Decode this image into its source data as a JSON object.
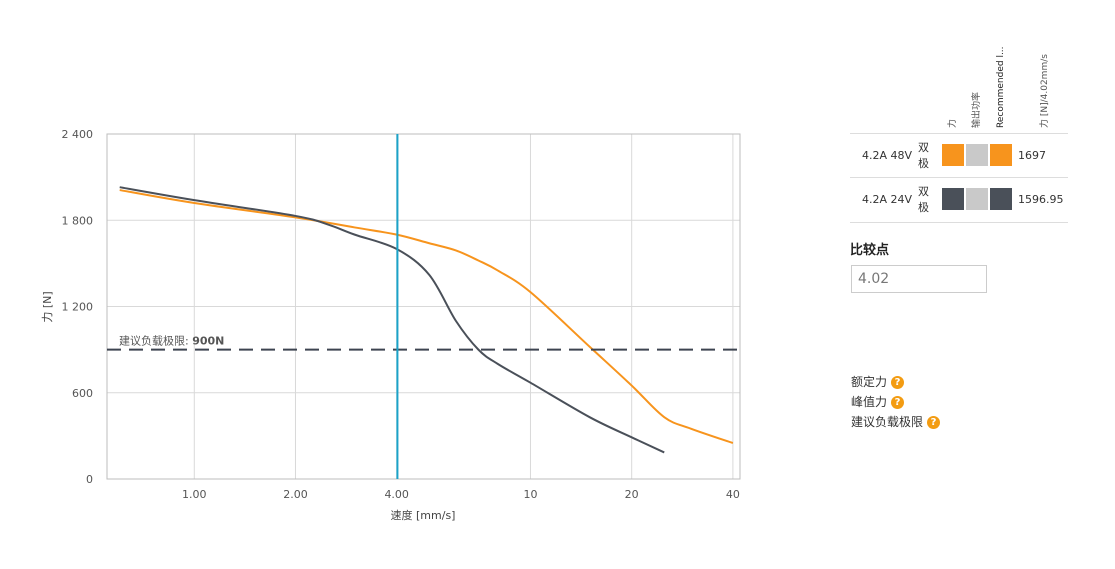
{
  "chart_data": {
    "type": "line",
    "xlabel": "速度 [mm/s]",
    "ylabel": "力 [N]",
    "xscale": "log",
    "xlim": [
      0.55,
      42
    ],
    "ylim": [
      0,
      2400
    ],
    "xticks": [
      1,
      2,
      4,
      10,
      20,
      40
    ],
    "xtick_labels": [
      "1.00",
      "2.00",
      "4.00",
      "10",
      "20",
      "40"
    ],
    "yticks": [
      0,
      600,
      1200,
      1800,
      2400
    ],
    "ytick_labels": [
      "0",
      "600",
      "1 200",
      "1 800",
      "2 400"
    ],
    "grid": true,
    "vline": {
      "x": 4.02,
      "color": "#1aa3c9"
    },
    "hline": {
      "y": 900,
      "label_prefix": "建议负载极限: ",
      "label_value": "900N",
      "color": "#3d4450"
    },
    "series": [
      {
        "name": "4.2A 48V",
        "color": "#f7941d",
        "x": [
          0.6,
          1.0,
          2.0,
          3.0,
          4.0,
          5.0,
          6.0,
          7.0,
          8.0,
          10.0,
          15.0,
          20.0,
          25.0,
          30.0,
          40.0
        ],
        "y": [
          2010,
          1920,
          1820,
          1750,
          1700,
          1640,
          1590,
          1520,
          1450,
          1300,
          920,
          650,
          430,
          350,
          250
        ]
      },
      {
        "name": "4.2A 24V",
        "color": "#4a5059",
        "x": [
          0.6,
          1.0,
          2.0,
          2.5,
          3.0,
          4.0,
          5.0,
          6.0,
          7.0,
          8.0,
          10.0,
          15.0,
          20.0,
          25.0
        ],
        "y": [
          2030,
          1940,
          1830,
          1770,
          1700,
          1600,
          1420,
          1100,
          900,
          800,
          670,
          430,
          290,
          185
        ]
      }
    ]
  },
  "legend": {
    "col_headers": [
      "力",
      "输出功率",
      "Recommended l...",
      "力 [N]/4.02mm/s"
    ],
    "rows": [
      {
        "name": "4.2A  48V",
        "drive": "双极",
        "colors": [
          "#f7941d",
          "#c9c9c9",
          "#f7941d"
        ],
        "value": "1697"
      },
      {
        "name": "4.2A  24V",
        "drive": "双极",
        "colors": [
          "#4a5059",
          "#c9c9c9",
          "#4a5059"
        ],
        "value": "1596.95"
      }
    ]
  },
  "compare": {
    "title": "比较点",
    "value": "4.02"
  },
  "help_links": [
    {
      "label": "额定力"
    },
    {
      "label": "峰值力"
    },
    {
      "label": "建议负载极限"
    }
  ]
}
